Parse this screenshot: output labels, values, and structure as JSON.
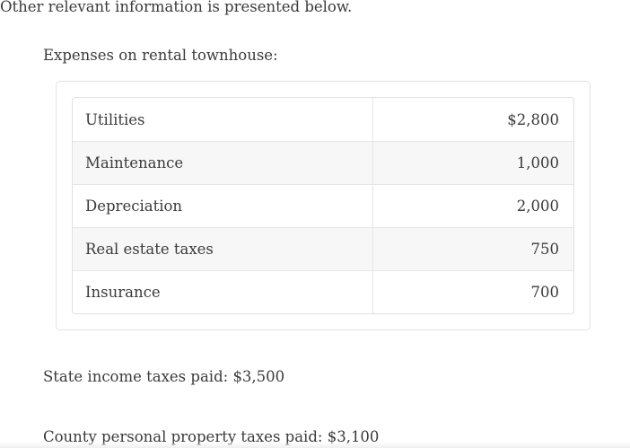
{
  "content": {
    "intro": "Other relevant information is presented below.",
    "expenses_heading": "Expenses on rental townhouse:",
    "state_taxes": "State income taxes paid: $3,500",
    "county_taxes": "County personal property taxes paid: $3,100"
  },
  "expenses_table": {
    "rows": [
      {
        "label": "Utilities",
        "amount": "$2,800"
      },
      {
        "label": "Maintenance",
        "amount": "1,000"
      },
      {
        "label": "Depreciation",
        "amount": "2,000"
      },
      {
        "label": "Real estate taxes",
        "amount": "750"
      },
      {
        "label": "Insurance",
        "amount": "700"
      }
    ]
  },
  "colors": {
    "text": "#3b3b3b",
    "page_bg": "#ffffff",
    "card_border": "#e2e2e2",
    "table_border": "#e0e0e0",
    "row_divider": "#e6e6e6",
    "zebra_row_bg": "#f7f7f7",
    "bottom_fade": "#efefef"
  }
}
